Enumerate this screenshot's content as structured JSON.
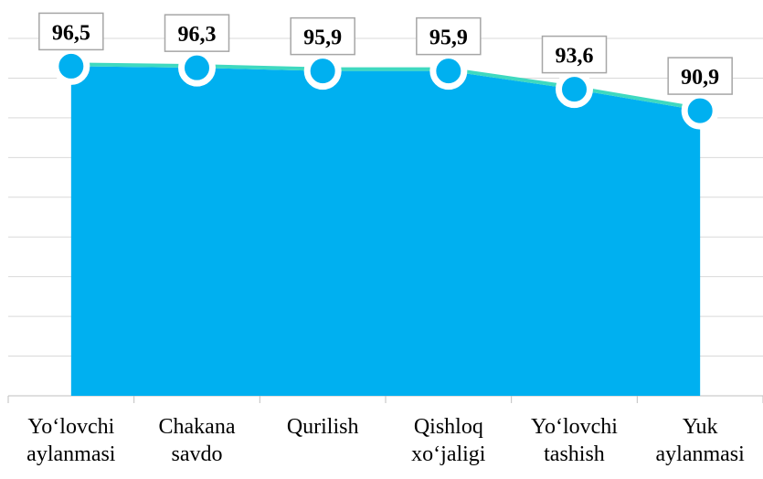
{
  "chart_data": {
    "type": "area",
    "categories": [
      "Yo‘lovchi aylanmasi",
      "Chakana savdo",
      "Qurilish",
      "Qishloq xo‘jaligi",
      "Yo‘lovchi tashish",
      "Yuk aylanmasi"
    ],
    "values": [
      96.5,
      96.3,
      95.9,
      95.9,
      93.6,
      90.9
    ],
    "value_labels": [
      "96,5",
      "96,3",
      "95,9",
      "95,9",
      "93,6",
      "90,9"
    ],
    "color": "#00b0f0",
    "line_color": "#3fd9c0",
    "ylim": [
      55,
      100
    ],
    "yticks": [
      55,
      60,
      65,
      70,
      75,
      80,
      85,
      90,
      95,
      100
    ],
    "grid": true
  }
}
